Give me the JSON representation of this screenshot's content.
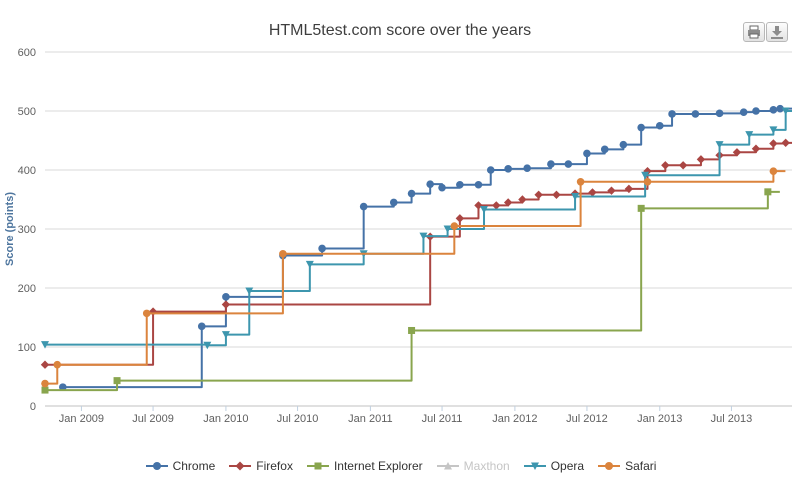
{
  "export": {
    "print_icon": "printer-icon",
    "download_icon": "download-icon"
  },
  "chart_data": {
    "type": "line",
    "step": true,
    "title": "HTML5test.com score over the years",
    "ylabel": "Score (points)",
    "xlabel": "",
    "ylim": [
      0,
      600
    ],
    "yticks": [
      "0",
      "100",
      "200",
      "300",
      "400",
      "500",
      "600"
    ],
    "xticks": [
      {
        "label": "Jan 2009",
        "date": "2009-01-01"
      },
      {
        "label": "Jul 2009",
        "date": "2009-07-01"
      },
      {
        "label": "Jan 2010",
        "date": "2010-01-01"
      },
      {
        "label": "Jul 2010",
        "date": "2010-07-01"
      },
      {
        "label": "Jan 2011",
        "date": "2011-01-01"
      },
      {
        "label": "Jul 2011",
        "date": "2011-07-01"
      },
      {
        "label": "Jan 2012",
        "date": "2012-01-01"
      },
      {
        "label": "Jul 2012",
        "date": "2012-07-01"
      },
      {
        "label": "Jan 2013",
        "date": "2013-01-01"
      },
      {
        "label": "Jul 2013",
        "date": "2013-07-01"
      }
    ],
    "grid": true,
    "legend": "bottom",
    "series": [
      {
        "name": "Chrome",
        "color": "#4572a7",
        "symbol": "circle",
        "visible": true,
        "data": [
          [
            "2008-11-15",
            32
          ],
          [
            "2009-11-01",
            135
          ],
          [
            "2010-01-01",
            185
          ],
          [
            "2010-05-25",
            255
          ],
          [
            "2010-09-01",
            267
          ],
          [
            "2010-12-15",
            338
          ],
          [
            "2011-03-01",
            345
          ],
          [
            "2011-04-15",
            360
          ],
          [
            "2011-06-01",
            376
          ],
          [
            "2011-07-01",
            370
          ],
          [
            "2011-08-15",
            375
          ],
          [
            "2011-10-01",
            375
          ],
          [
            "2011-11-01",
            400
          ],
          [
            "2011-12-15",
            402
          ],
          [
            "2012-02-01",
            403
          ],
          [
            "2012-04-01",
            410
          ],
          [
            "2012-05-15",
            410
          ],
          [
            "2012-07-01",
            428
          ],
          [
            "2012-08-15",
            435
          ],
          [
            "2012-10-01",
            443
          ],
          [
            "2012-11-15",
            472
          ],
          [
            "2013-01-01",
            475
          ],
          [
            "2013-02-01",
            495
          ],
          [
            "2013-04-01",
            495
          ],
          [
            "2013-06-01",
            496
          ],
          [
            "2013-08-01",
            498
          ],
          [
            "2013-09-01",
            500
          ],
          [
            "2013-10-15",
            502
          ],
          [
            "2013-11-01",
            504
          ]
        ]
      },
      {
        "name": "Firefox",
        "color": "#aa4643",
        "symbol": "diamond",
        "visible": true,
        "data": [
          [
            "2008-10-01",
            70
          ],
          [
            "2009-07-01",
            160
          ],
          [
            "2010-01-01",
            172
          ],
          [
            "2011-06-01",
            287
          ],
          [
            "2011-08-15",
            318
          ],
          [
            "2011-10-01",
            340
          ],
          [
            "2011-11-15",
            340
          ],
          [
            "2011-12-15",
            345
          ],
          [
            "2012-01-20",
            350
          ],
          [
            "2012-03-01",
            358
          ],
          [
            "2012-04-15",
            358
          ],
          [
            "2012-06-01",
            360
          ],
          [
            "2012-07-15",
            362
          ],
          [
            "2012-09-01",
            365
          ],
          [
            "2012-10-15",
            368
          ],
          [
            "2012-12-01",
            398
          ],
          [
            "2013-01-15",
            408
          ],
          [
            "2013-03-01",
            408
          ],
          [
            "2013-04-15",
            418
          ],
          [
            "2013-06-01",
            425
          ],
          [
            "2013-07-15",
            430
          ],
          [
            "2013-09-01",
            436
          ],
          [
            "2013-10-15",
            445
          ],
          [
            "2013-11-15",
            446
          ]
        ]
      },
      {
        "name": "Internet Explorer",
        "color": "#89a54e",
        "symbol": "square",
        "visible": true,
        "data": [
          [
            "2008-10-01",
            27
          ],
          [
            "2009-04-01",
            43
          ],
          [
            "2011-04-15",
            128
          ],
          [
            "2012-11-15",
            335
          ],
          [
            "2013-10-01",
            363
          ]
        ]
      },
      {
        "name": "Maxthon",
        "color": "#b8b8b8",
        "symbol": "triangle",
        "visible": false,
        "data": []
      },
      {
        "name": "Opera",
        "color": "#3d96ae",
        "symbol": "triangle-down",
        "visible": true,
        "data": [
          [
            "2008-10-01",
            104
          ],
          [
            "2009-11-15",
            103
          ],
          [
            "2010-01-01",
            121
          ],
          [
            "2010-03-01",
            195
          ],
          [
            "2010-08-01",
            240
          ],
          [
            "2010-12-15",
            258
          ],
          [
            "2011-05-15",
            288
          ],
          [
            "2011-07-15",
            300
          ],
          [
            "2011-10-15",
            333
          ],
          [
            "2012-06-01",
            355
          ],
          [
            "2012-11-25",
            391
          ],
          [
            "2013-06-01",
            443
          ],
          [
            "2013-08-15",
            460
          ],
          [
            "2013-10-15",
            468
          ],
          [
            "2013-11-15",
            500
          ]
        ]
      },
      {
        "name": "Safari",
        "color": "#db843d",
        "symbol": "circle",
        "visible": true,
        "data": [
          [
            "2008-10-01",
            38
          ],
          [
            "2008-11-01",
            70
          ],
          [
            "2009-06-15",
            157
          ],
          [
            "2010-05-25",
            258
          ],
          [
            "2011-08-01",
            305
          ],
          [
            "2012-06-15",
            380
          ],
          [
            "2012-12-01",
            380
          ],
          [
            "2013-10-15",
            398
          ]
        ]
      }
    ]
  }
}
